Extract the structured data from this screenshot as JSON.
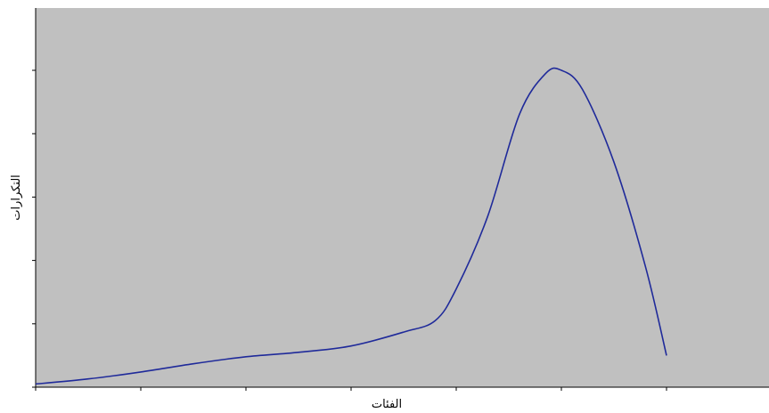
{
  "chart_data": {
    "type": "line",
    "title": "",
    "xlabel": "الفئات",
    "ylabel": "التكرارات",
    "x": [
      1,
      2,
      3,
      4,
      5,
      6,
      7
    ],
    "ylim": [
      0,
      6
    ],
    "xlim": [
      1,
      8
    ],
    "grid": false,
    "series": [
      {
        "name": "",
        "color": "#1f2a9a",
        "points": [
          [
            1.0,
            0.05
          ],
          [
            1.5,
            0.13
          ],
          [
            2.0,
            0.24
          ],
          [
            2.5,
            0.37
          ],
          [
            3.0,
            0.48
          ],
          [
            3.5,
            0.55
          ],
          [
            4.0,
            0.65
          ],
          [
            4.5,
            0.87
          ],
          [
            4.8,
            1.05
          ],
          [
            5.0,
            1.55
          ],
          [
            5.3,
            2.7
          ],
          [
            5.6,
            4.3
          ],
          [
            5.85,
            4.95
          ],
          [
            6.0,
            5.0
          ],
          [
            6.2,
            4.7
          ],
          [
            6.5,
            3.55
          ],
          [
            6.8,
            1.9
          ],
          [
            7.0,
            0.5
          ]
        ]
      }
    ]
  }
}
